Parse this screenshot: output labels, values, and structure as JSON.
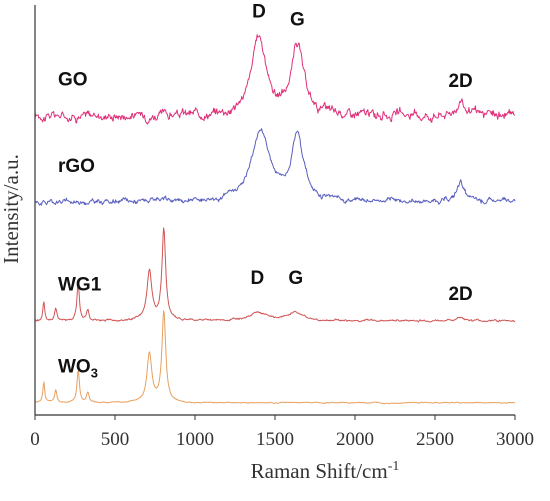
{
  "chart_data": {
    "type": "line",
    "title": "",
    "xlabel": "Raman Shift/cm",
    "xlabel_sup": "-1",
    "ylabel": "Intensity/a.u.",
    "xlim": [
      0,
      3000
    ],
    "ylim": [
      0,
      100
    ],
    "x_ticks": [
      0,
      500,
      1000,
      1500,
      2000,
      2500,
      3000
    ],
    "x_tick_labels": [
      "0",
      "500",
      "1000",
      "1500",
      "2000",
      "2500",
      "3000"
    ],
    "grid": false,
    "legend": "none",
    "colors": {
      "GO": "#e0307a",
      "rGO": "#5a5fc0",
      "WG1": "#d05555",
      "WO3": "#e8a060",
      "axis": "#333333"
    },
    "series": [
      {
        "name": "GO",
        "name_main": "GO",
        "name_sub": "",
        "baseline": 73,
        "noise": 0.9,
        "peaks": [
          {
            "x": 1400,
            "height": 19,
            "width": 55
          },
          {
            "x": 1640,
            "height": 17,
            "width": 45
          },
          {
            "x": 2660,
            "height": 4,
            "width": 28
          }
        ],
        "labels": [
          {
            "text": "D",
            "x": 1400,
            "y": 97
          },
          {
            "text": "G",
            "x": 1640,
            "y": 95
          },
          {
            "text": "2D",
            "x": 2660,
            "y": 80
          }
        ]
      },
      {
        "name": "rGO",
        "name_main": "rGO",
        "name_sub": "",
        "baseline": 52,
        "noise": 0.5,
        "peaks": [
          {
            "x": 1410,
            "height": 17,
            "width": 70
          },
          {
            "x": 1640,
            "height": 16,
            "width": 45
          },
          {
            "x": 2660,
            "height": 5,
            "width": 25
          }
        ],
        "labels": []
      },
      {
        "name": "WG1",
        "name_main": "WG1",
        "name_sub": "",
        "baseline": 23,
        "noise": 0.2,
        "peaks": [
          {
            "x": 55,
            "height": 5,
            "width": 7
          },
          {
            "x": 130,
            "height": 3,
            "width": 8
          },
          {
            "x": 270,
            "height": 9,
            "width": 9
          },
          {
            "x": 330,
            "height": 2.5,
            "width": 9
          },
          {
            "x": 715,
            "height": 12,
            "width": 18
          },
          {
            "x": 805,
            "height": 22,
            "width": 14
          },
          {
            "x": 1390,
            "height": 2,
            "width": 70
          },
          {
            "x": 1630,
            "height": 2,
            "width": 50
          },
          {
            "x": 2660,
            "height": 1,
            "width": 25
          }
        ],
        "labels": [
          {
            "text": "D",
            "x": 1390,
            "y": 32
          },
          {
            "text": "G",
            "x": 1630,
            "y": 32
          },
          {
            "text": "2D",
            "x": 2660,
            "y": 28
          }
        ]
      },
      {
        "name": "WO3",
        "name_main": "WO",
        "name_sub": "3",
        "baseline": 3,
        "noise": 0.1,
        "peaks": [
          {
            "x": 55,
            "height": 5,
            "width": 7
          },
          {
            "x": 130,
            "height": 3,
            "width": 8
          },
          {
            "x": 270,
            "height": 8,
            "width": 9
          },
          {
            "x": 330,
            "height": 2.5,
            "width": 9
          },
          {
            "x": 715,
            "height": 12,
            "width": 18
          },
          {
            "x": 805,
            "height": 22,
            "width": 14
          }
        ],
        "labels": []
      }
    ]
  }
}
